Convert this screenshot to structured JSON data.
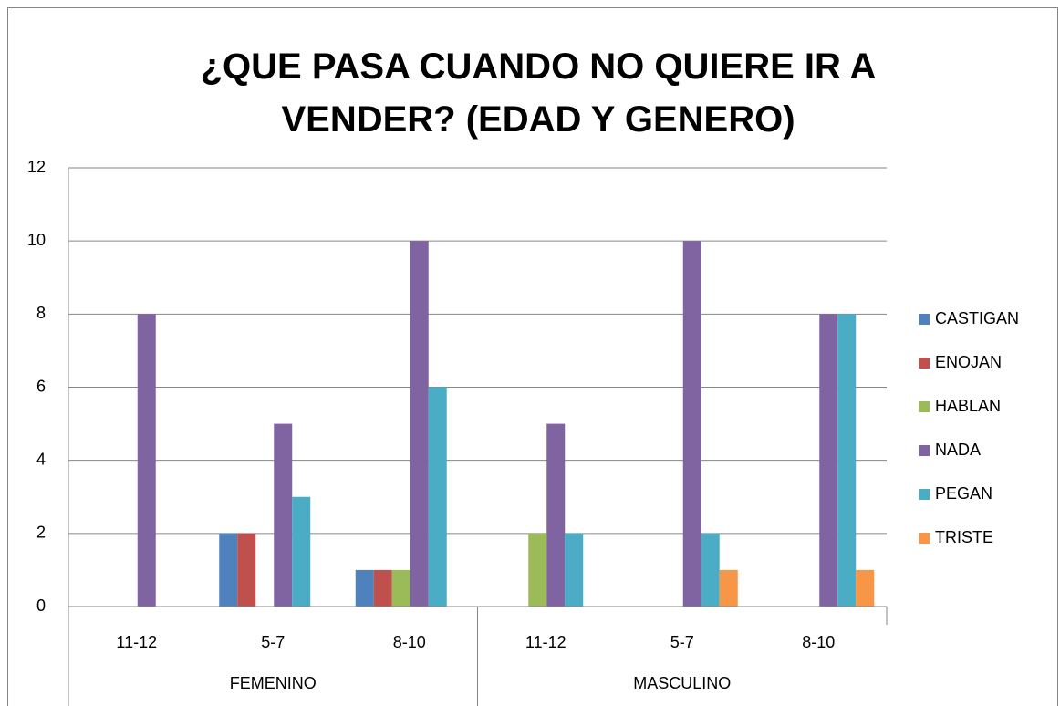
{
  "chart_data": {
    "type": "bar",
    "title": "¿QUE PASA CUANDO NO QUIERE IR A VENDER? (EDAD Y GENERO)",
    "category_groups": [
      {
        "label": "FEMENINO",
        "categories": [
          "11-12",
          "5-7",
          "8-10"
        ]
      },
      {
        "label": "MASCULINO",
        "categories": [
          "11-12",
          "5-7",
          "8-10"
        ]
      }
    ],
    "series": [
      {
        "name": "CASTIGAN",
        "color": "#4f81bd",
        "values": [
          0,
          2,
          1,
          0,
          0,
          0
        ]
      },
      {
        "name": "ENOJAN",
        "color": "#c0504d",
        "values": [
          0,
          2,
          1,
          0,
          0,
          0
        ]
      },
      {
        "name": "HABLAN",
        "color": "#9bbb59",
        "values": [
          0,
          0,
          1,
          2,
          0,
          0
        ]
      },
      {
        "name": "NADA",
        "color": "#8064a2",
        "values": [
          8,
          5,
          10,
          5,
          10,
          8
        ]
      },
      {
        "name": "PEGAN",
        "color": "#4bacc6",
        "values": [
          0,
          3,
          6,
          2,
          2,
          8
        ]
      },
      {
        "name": "TRISTE",
        "color": "#f79646",
        "values": [
          0,
          0,
          0,
          0,
          1,
          1
        ]
      }
    ],
    "ylim": [
      0,
      12
    ],
    "yticks": [
      0,
      2,
      4,
      6,
      8,
      10,
      12
    ],
    "grid": true,
    "legend": "right"
  }
}
